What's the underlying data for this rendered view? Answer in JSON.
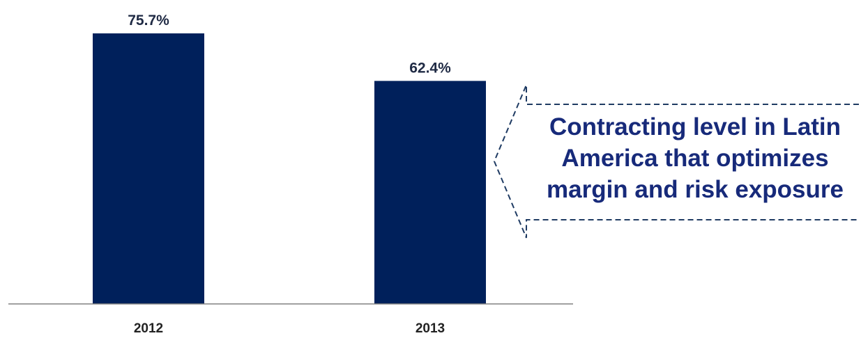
{
  "chart_data": {
    "type": "bar",
    "categories": [
      "2012",
      "2013"
    ],
    "values": [
      75.7,
      62.4
    ],
    "value_labels": [
      "75.7%",
      "62.4%"
    ],
    "unit": "%",
    "ylim": [
      0,
      75.7
    ],
    "grid": false,
    "legend": "none",
    "bar_color": "#00205b",
    "axis_color": "#808080"
  },
  "callout": {
    "lines": [
      "Contracting level in Latin",
      "America that optimizes",
      "margin and risk exposure"
    ],
    "text_color": "#172a7a",
    "border_color": "#1f3b63"
  }
}
